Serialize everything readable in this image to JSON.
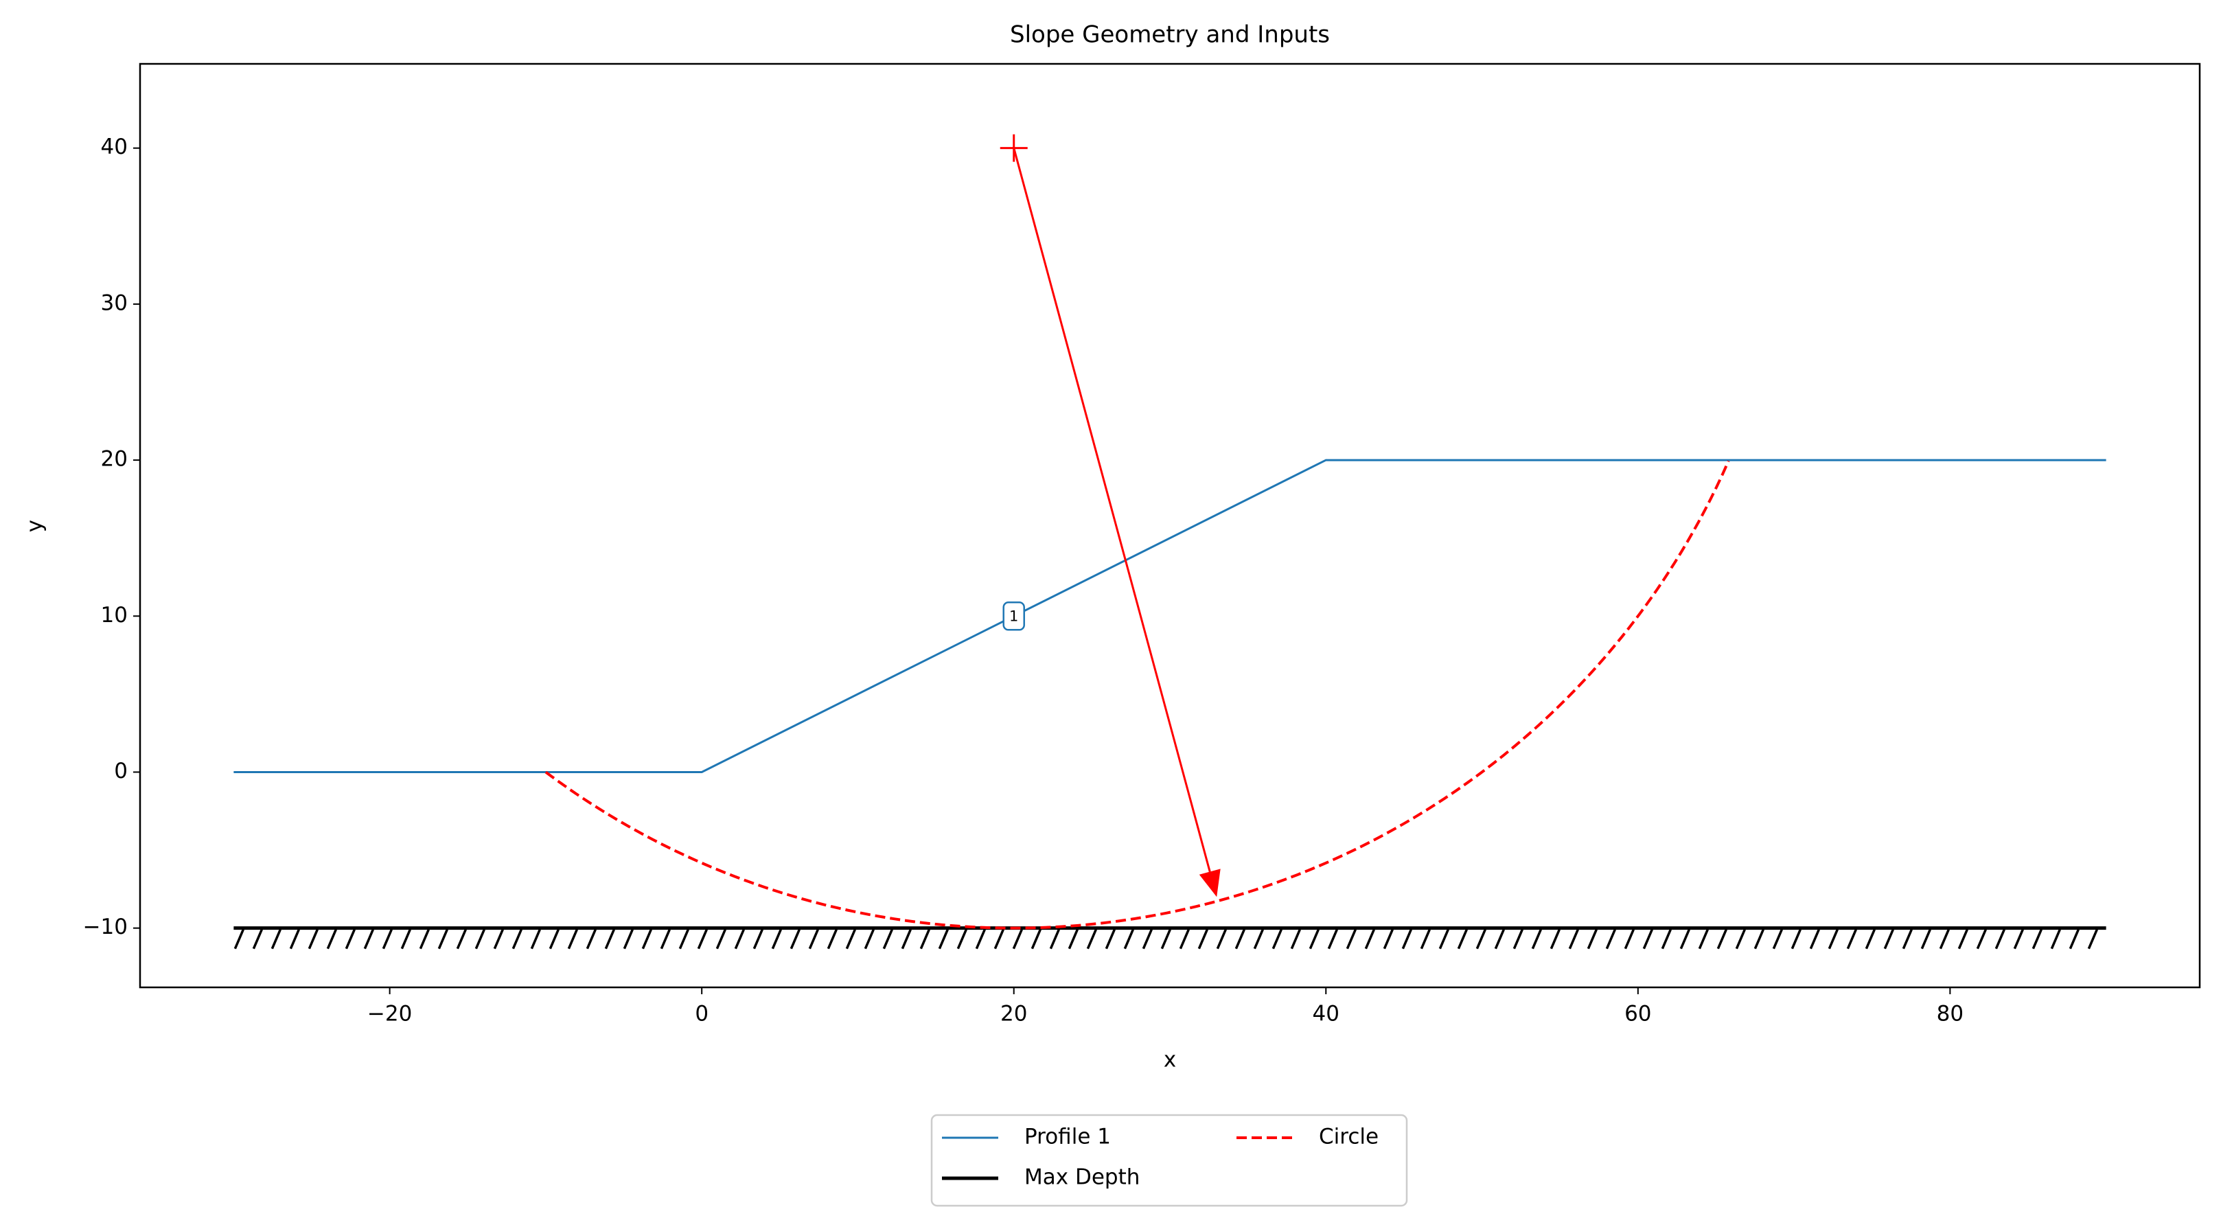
{
  "chart_data": {
    "type": "line",
    "title": "Slope Geometry and Inputs",
    "x_label": "x",
    "y_label": "y",
    "xlim": [
      -36,
      96
    ],
    "ylim": [
      -13.8,
      45.4
    ],
    "xticks": [
      {
        "value": -20,
        "label": "−20"
      },
      0,
      20,
      40,
      60,
      80
    ],
    "yticks": [
      {
        "value": -10,
        "label": "−10"
      },
      0,
      10,
      20,
      30,
      40
    ],
    "series": [
      {
        "name": "Profile 1",
        "color": "#1f77b4",
        "x": [
          -30,
          0,
          40,
          90
        ],
        "y": [
          0,
          0,
          20,
          20
        ]
      },
      {
        "name": "Max Depth",
        "color": "#000000",
        "x": [
          -30,
          90
        ],
        "y": [
          -10,
          -10
        ],
        "hatch": true
      },
      {
        "name": "Circle",
        "color": "#ff0000",
        "style": "dashed",
        "center_x": 20,
        "center_y": 40,
        "radius": 50,
        "x_start": -10,
        "x_end": 65.8
      }
    ],
    "profile_labels": [
      {
        "text": "1",
        "x": 20,
        "y": 10
      }
    ],
    "arrow": {
      "color": "#ff0000",
      "x": [
        20,
        33
      ],
      "y": [
        40,
        -8
      ]
    }
  }
}
